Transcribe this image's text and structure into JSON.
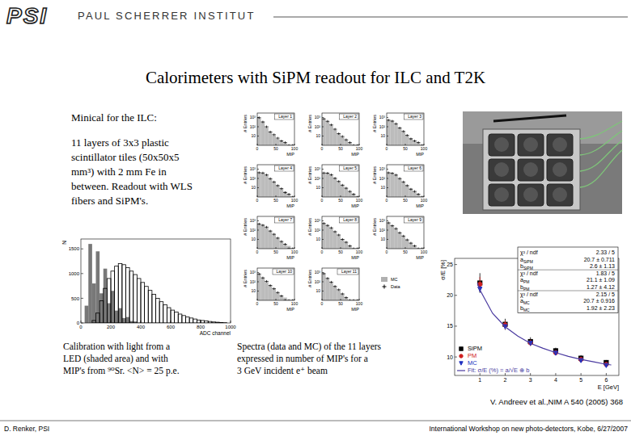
{
  "header": {
    "logo": "PSI",
    "institute": "PAUL SCHERRER INSTITUT"
  },
  "title": "Calorimeters with SiPM readout for ILC and T2K",
  "description": {
    "heading": "Minical for the ILC:",
    "lines": [
      "11 layers of 3x3 plastic",
      "scintillator tiles (50x50x5",
      "mm³) with 2 mm Fe in",
      "between. Readout with WLS",
      "fibers and SiPM's."
    ]
  },
  "captions": {
    "calibration": [
      "Calibration with light from a",
      "LED (shaded area) and with",
      "MIP's from ⁹⁰Sr. <N> = 25 p.e."
    ],
    "spectra": [
      "Spectra (data and MC) of the 11 layers",
      "expressed in number of MIP's for a",
      "3 GeV incident e⁺ beam"
    ]
  },
  "reference": "V. Andreev et al.,NIM A 540 (2005) 368",
  "footer": {
    "author": "D. Renker, PSI",
    "event": "International Workshop on new photo-detectors, Kobe, 6/27/2007"
  },
  "chart_data": [
    {
      "type": "histogram",
      "xlabel": "ADC channel",
      "ylabel": "N",
      "bins": [
        0,
        25,
        50,
        75,
        100,
        125,
        150,
        175,
        200,
        225,
        250,
        275,
        300,
        325,
        350,
        375,
        400,
        425,
        450,
        475,
        500,
        525,
        550,
        575,
        600,
        625,
        650,
        675,
        700,
        725,
        750,
        775,
        800,
        825,
        850,
        875,
        900,
        925,
        950,
        975,
        1000
      ],
      "series": [
        {
          "type": "bar",
          "color": "#606060",
          "values": [
            0,
            350,
            1600,
            800,
            1450,
            600,
            1100,
            400,
            650,
            250,
            300,
            100,
            120,
            40,
            30,
            0,
            0,
            0,
            0,
            0,
            0,
            0,
            0,
            0,
            0,
            0,
            0,
            0,
            0,
            0,
            0,
            0,
            0,
            0,
            0,
            0,
            0,
            0,
            0,
            0
          ]
        },
        {
          "type": "step",
          "color": "#000000",
          "values": [
            0,
            0,
            0,
            50,
            200,
            450,
            700,
            900,
            1050,
            1150,
            1200,
            1180,
            1120,
            1050,
            980,
            900,
            820,
            740,
            660,
            580,
            500,
            430,
            370,
            310,
            260,
            220,
            180,
            150,
            120,
            100,
            80,
            60,
            50,
            40,
            30,
            20,
            15,
            10,
            5,
            0
          ]
        }
      ],
      "xlim": [
        0,
        1000
      ],
      "xticks": [
        0,
        200,
        400,
        600,
        800,
        1000
      ],
      "ylim": [
        0,
        1700
      ],
      "yticks": [
        0,
        500,
        1000,
        1500
      ]
    },
    {
      "type": "histogram",
      "title": "Layer 1",
      "xlabel": "MIP",
      "ylabel": "# Entries",
      "log": "y",
      "bins": [
        0,
        10,
        20,
        30,
        40,
        50,
        60,
        70,
        80,
        90,
        100
      ],
      "series": [
        {
          "type": "bar",
          "color": "#b0b0b0",
          "values": [
            900,
            350,
            90,
            30,
            12,
            5,
            3,
            2,
            1,
            1
          ]
        },
        {
          "marker": "cross",
          "color": "#000000",
          "values": [
            950,
            330,
            100,
            28,
            14,
            6,
            3,
            2,
            1,
            1
          ]
        }
      ],
      "xlim": [
        0,
        100
      ],
      "xticks": [
        0,
        50,
        100
      ],
      "ylim": [
        1,
        3000
      ],
      "yticks": [
        10,
        {
          "value": 100,
          "label": "10²"
        },
        {
          "value": 1000,
          "label": "10³"
        }
      ]
    },
    {
      "type": "histogram",
      "title": "Layer 2",
      "xlabel": "MIP",
      "ylabel": "# Entries",
      "log": "y",
      "bins": [
        0,
        10,
        20,
        30,
        40,
        50,
        60,
        70,
        80,
        90,
        100
      ],
      "series": [
        {
          "type": "bar",
          "color": "#b0b0b0",
          "values": [
            700,
            400,
            150,
            50,
            20,
            8,
            4,
            2,
            1,
            1
          ]
        },
        {
          "marker": "cross",
          "color": "#000000",
          "values": [
            720,
            390,
            160,
            55,
            18,
            9,
            4,
            2,
            1,
            1
          ]
        }
      ],
      "xlim": [
        0,
        100
      ],
      "xticks": [
        0,
        50,
        100
      ],
      "ylim": [
        1,
        3000
      ],
      "yticks": [
        10,
        {
          "value": 100,
          "label": "10²"
        },
        {
          "value": 1000,
          "label": "10³"
        }
      ]
    },
    {
      "type": "histogram",
      "title": "Layer 3",
      "xlabel": "MIP",
      "ylabel": "# Entries",
      "log": "y",
      "bins": [
        0,
        10,
        20,
        30,
        40,
        50,
        60,
        70,
        80,
        90,
        100
      ],
      "series": [
        {
          "type": "bar",
          "color": "#b0b0b0",
          "values": [
            500,
            420,
            200,
            80,
            30,
            12,
            6,
            3,
            2,
            1
          ]
        },
        {
          "marker": "cross",
          "color": "#000000",
          "values": [
            520,
            410,
            210,
            75,
            32,
            12,
            5,
            3,
            2,
            1
          ]
        }
      ],
      "xlim": [
        0,
        100
      ],
      "xticks": [
        0,
        50,
        100
      ],
      "ylim": [
        1,
        3000
      ],
      "yticks": [
        10,
        {
          "value": 100,
          "label": "10²"
        },
        {
          "value": 1000,
          "label": "10³"
        }
      ]
    },
    {
      "type": "histogram",
      "title": "Layer 4",
      "xlabel": "MIP",
      "ylabel": "# Entries",
      "log": "y",
      "bins": [
        0,
        10,
        20,
        30,
        40,
        50,
        60,
        70,
        80,
        90,
        100
      ],
      "series": [
        {
          "type": "bar",
          "color": "#b0b0b0",
          "values": [
            400,
            400,
            230,
            100,
            40,
            18,
            8,
            4,
            2,
            1
          ]
        },
        {
          "marker": "cross",
          "color": "#000000",
          "values": [
            420,
            390,
            240,
            95,
            42,
            17,
            8,
            3,
            2,
            1
          ]
        }
      ],
      "xlim": [
        0,
        100
      ],
      "xticks": [
        0,
        50,
        100
      ],
      "ylim": [
        1,
        3000
      ],
      "yticks": [
        10,
        {
          "value": 100,
          "label": "10²"
        },
        {
          "value": 1000,
          "label": "10³"
        }
      ]
    },
    {
      "type": "histogram",
      "title": "Layer 5",
      "xlabel": "MIP",
      "ylabel": "# Entries",
      "log": "y",
      "bins": [
        0,
        10,
        20,
        30,
        40,
        50,
        60,
        70,
        80,
        90,
        100
      ],
      "series": [
        {
          "type": "bar",
          "color": "#b0b0b0",
          "values": [
            380,
            380,
            240,
            110,
            45,
            20,
            9,
            4,
            2,
            1
          ]
        },
        {
          "marker": "cross",
          "color": "#000000",
          "values": [
            390,
            370,
            250,
            105,
            48,
            19,
            9,
            4,
            2,
            1
          ]
        }
      ],
      "xlim": [
        0,
        100
      ],
      "xticks": [
        0,
        50,
        100
      ],
      "ylim": [
        1,
        3000
      ],
      "yticks": [
        10,
        {
          "value": 100,
          "label": "10²"
        },
        {
          "value": 1000,
          "label": "10³"
        }
      ]
    },
    {
      "type": "histogram",
      "title": "Layer 6",
      "xlabel": "MIP",
      "ylabel": "# Entries",
      "log": "y",
      "bins": [
        0,
        10,
        20,
        30,
        40,
        50,
        60,
        70,
        80,
        90,
        100
      ],
      "series": [
        {
          "type": "bar",
          "color": "#b0b0b0",
          "values": [
            400,
            370,
            230,
            100,
            40,
            18,
            8,
            4,
            2,
            1
          ]
        },
        {
          "marker": "cross",
          "color": "#000000",
          "values": [
            410,
            360,
            235,
            98,
            42,
            17,
            7,
            4,
            2,
            1
          ]
        }
      ],
      "xlim": [
        0,
        100
      ],
      "xticks": [
        0,
        50,
        100
      ],
      "ylim": [
        1,
        3000
      ],
      "yticks": [
        10,
        {
          "value": 100,
          "label": "10²"
        },
        {
          "value": 1000,
          "label": "10³"
        }
      ]
    },
    {
      "type": "histogram",
      "title": "Layer 7",
      "xlabel": "MIP",
      "ylabel": "# Entries",
      "log": "y",
      "bins": [
        0,
        10,
        20,
        30,
        40,
        50,
        60,
        70,
        80,
        90,
        100
      ],
      "series": [
        {
          "type": "bar",
          "color": "#b0b0b0",
          "values": [
            450,
            350,
            200,
            85,
            35,
            14,
            6,
            3,
            2,
            1
          ]
        },
        {
          "marker": "cross",
          "color": "#000000",
          "values": [
            460,
            340,
            210,
            80,
            36,
            14,
            6,
            3,
            1,
            1
          ]
        }
      ],
      "xlim": [
        0,
        100
      ],
      "xticks": [
        0,
        50,
        100
      ],
      "ylim": [
        1,
        3000
      ],
      "yticks": [
        10,
        {
          "value": 100,
          "label": "10²"
        },
        {
          "value": 1000,
          "label": "10³"
        }
      ]
    },
    {
      "type": "histogram",
      "title": "Layer 8",
      "xlabel": "MIP",
      "ylabel": "# Entries",
      "log": "y",
      "bins": [
        0,
        10,
        20,
        30,
        40,
        50,
        60,
        70,
        80,
        90,
        100
      ],
      "series": [
        {
          "type": "bar",
          "color": "#b0b0b0",
          "values": [
            520,
            330,
            170,
            70,
            28,
            11,
            5,
            2,
            1,
            1
          ]
        },
        {
          "marker": "cross",
          "color": "#000000",
          "values": [
            530,
            320,
            175,
            68,
            30,
            10,
            5,
            2,
            1,
            1
          ]
        }
      ],
      "xlim": [
        0,
        100
      ],
      "xticks": [
        0,
        50,
        100
      ],
      "ylim": [
        1,
        3000
      ],
      "yticks": [
        10,
        {
          "value": 100,
          "label": "10²"
        },
        {
          "value": 1000,
          "label": "10³"
        }
      ]
    },
    {
      "type": "histogram",
      "title": "Layer 9",
      "xlabel": "MIP",
      "ylabel": "# Entries",
      "log": "y",
      "bins": [
        0,
        10,
        20,
        30,
        40,
        50,
        60,
        70,
        80,
        90,
        100
      ],
      "series": [
        {
          "type": "bar",
          "color": "#b0b0b0",
          "values": [
            600,
            300,
            140,
            55,
            22,
            9,
            4,
            2,
            1,
            1
          ]
        },
        {
          "marker": "cross",
          "color": "#000000",
          "values": [
            610,
            295,
            145,
            52,
            23,
            9,
            4,
            2,
            1,
            1
          ]
        }
      ],
      "xlim": [
        0,
        100
      ],
      "xticks": [
        0,
        50,
        100
      ],
      "ylim": [
        1,
        3000
      ],
      "yticks": [
        10,
        {
          "value": 100,
          "label": "10²"
        },
        {
          "value": 1000,
          "label": "10³"
        }
      ]
    },
    {
      "type": "histogram",
      "title": "Layer 10",
      "xlabel": "MIP",
      "ylabel": "# Entries",
      "log": "y",
      "bins": [
        0,
        10,
        20,
        30,
        40,
        50,
        60,
        70,
        80,
        90,
        100
      ],
      "series": [
        {
          "type": "bar",
          "color": "#b0b0b0",
          "values": [
            680,
            270,
            110,
            42,
            17,
            7,
            3,
            2,
            1,
            1
          ]
        },
        {
          "marker": "cross",
          "color": "#000000",
          "values": [
            690,
            265,
            112,
            40,
            18,
            7,
            3,
            1,
            1,
            1
          ]
        }
      ],
      "xlim": [
        0,
        100
      ],
      "xticks": [
        0,
        50,
        100
      ],
      "ylim": [
        1,
        3000
      ],
      "yticks": [
        10,
        {
          "value": 100,
          "label": "10²"
        },
        {
          "value": 1000,
          "label": "10³"
        }
      ]
    },
    {
      "type": "histogram",
      "title": "Layer 11",
      "xlabel": "MIP",
      "ylabel": "# Entries",
      "log": "y",
      "legend": "right",
      "bins": [
        0,
        10,
        20,
        30,
        40,
        50,
        60,
        70,
        80,
        90,
        100
      ],
      "series": [
        {
          "name": "MC",
          "type": "bar",
          "color": "#b0b0b0",
          "values": [
            750,
            240,
            90,
            33,
            13,
            5,
            2,
            1,
            1,
            1
          ]
        },
        {
          "name": "Data",
          "marker": "cross",
          "color": "#000000",
          "values": [
            760,
            235,
            92,
            32,
            14,
            5,
            2,
            1,
            1,
            1
          ]
        }
      ],
      "xlim": [
        0,
        100
      ],
      "xticks": [
        0,
        50,
        100
      ],
      "ylim": [
        1,
        3000
      ],
      "yticks": [
        10,
        {
          "value": 100,
          "label": "10²"
        },
        {
          "value": 1000,
          "label": "10³"
        }
      ]
    },
    {
      "type": "scatter",
      "xlabel": "E [GeV]",
      "ylabel": "σ/E [%]",
      "legend": "lower left",
      "x": [
        1,
        2,
        3,
        4,
        5,
        6
      ],
      "series": [
        {
          "name": "SiPM",
          "marker": "square",
          "color": "#000000",
          "values": [
            22.0,
            15.3,
            12.5,
            11.0,
            9.8,
            9.1
          ],
          "errors": [
            1.6,
            0.9,
            0.7,
            0.5,
            0.5,
            0.4
          ]
        },
        {
          "name": "PM",
          "marker": "circle",
          "color": "#d02020",
          "values": [
            21.8,
            15.2,
            12.3,
            10.7,
            9.6,
            8.8
          ],
          "errors": [
            1.2,
            0.7,
            0.5,
            0.4,
            0.4,
            0.4
          ]
        },
        {
          "name": "MC",
          "marker": "triangle-down",
          "color": "#2030c0",
          "values": [
            21.0,
            14.9,
            12.2,
            10.6,
            9.4,
            8.6
          ],
          "errors": [
            0.5,
            0.3,
            0.3,
            0.3,
            0.2,
            0.2
          ]
        },
        {
          "name": "Fit: σ/E (%) = a/√E ⊕ b",
          "type": "line",
          "line_style": "solid",
          "color": "#4a3aa0",
          "x": [
            0.9,
            1,
            1.5,
            2,
            2.5,
            3,
            3.5,
            4,
            4.5,
            5,
            5.5,
            6,
            6.2
          ],
          "values": [
            22.0,
            20.9,
            17.1,
            14.9,
            13.4,
            12.2,
            11.4,
            10.7,
            10.1,
            9.6,
            9.2,
            8.8,
            8.7
          ]
        }
      ],
      "xlim": [
        0,
        6.5
      ],
      "xticks": [
        1,
        2,
        3,
        4,
        5,
        6
      ],
      "ylim": [
        7,
        26
      ],
      "yticks": [
        10,
        15,
        20,
        25
      ],
      "fit_box": [
        {
          "label": "χ² / ndf",
          "value": "2.33 / 5"
        },
        {
          "label": "a",
          "sub": "SiPM",
          "value": "20.7 ± 0.711"
        },
        {
          "label": "b",
          "sub": "SiPM",
          "value": "2.6 ± 1.13"
        },
        {
          "label": "χ² / ndf",
          "value": "1.83 / 5"
        },
        {
          "label": "a",
          "sub": "PM",
          "value": "21.1 ± 1.09"
        },
        {
          "label": "b",
          "sub": "PM",
          "value": "1.27 ± 4.12"
        },
        {
          "label": "χ² / ndf",
          "value": "2.15 / 5"
        },
        {
          "label": "a",
          "sub": "MC",
          "value": "20.7 ± 0.916"
        },
        {
          "label": "b",
          "sub": "MC",
          "value": "1.92 ± 2.23"
        }
      ]
    }
  ]
}
